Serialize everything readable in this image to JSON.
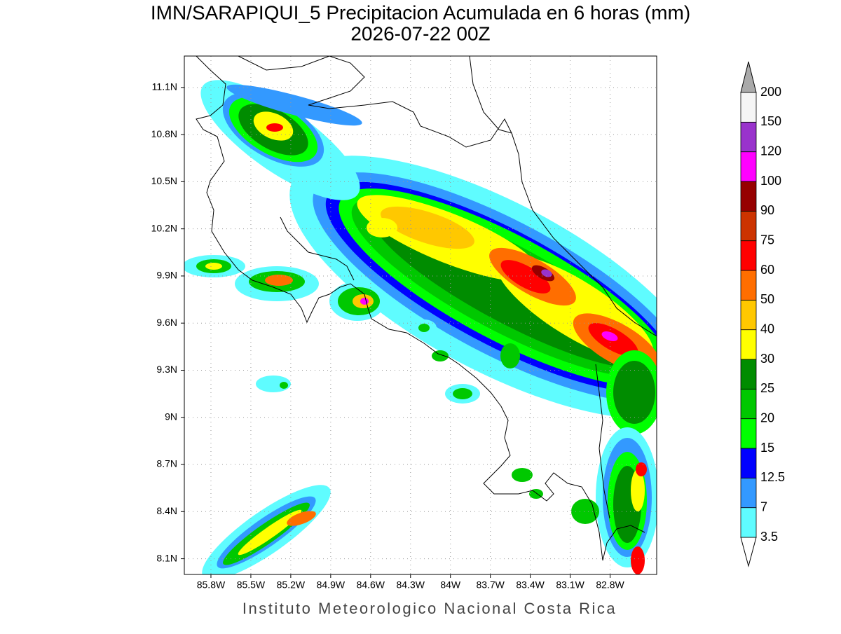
{
  "chart_data": {
    "type": "map",
    "title": "IMN/SARAPIQUI_5 Precipitacion Acumulada en 6 horas (mm)",
    "subtitle": "2026-07-22 00Z",
    "footer": "Instituto Meteorologico Nacional Costa Rica",
    "xlim": [
      -86.0,
      -82.45
    ],
    "ylim": [
      8.0,
      11.3
    ],
    "xticks": [
      {
        "value": -85.8,
        "label": "85.8W"
      },
      {
        "value": -85.5,
        "label": "85.5W"
      },
      {
        "value": -85.2,
        "label": "85.2W"
      },
      {
        "value": -84.9,
        "label": "84.9W"
      },
      {
        "value": -84.6,
        "label": "84.6W"
      },
      {
        "value": -84.3,
        "label": "84.3W"
      },
      {
        "value": -84.0,
        "label": "84W"
      },
      {
        "value": -83.7,
        "label": "83.7W"
      },
      {
        "value": -83.4,
        "label": "83.4W"
      },
      {
        "value": -83.1,
        "label": "83.1W"
      },
      {
        "value": -82.8,
        "label": "82.8W"
      }
    ],
    "yticks": [
      {
        "value": 8.1,
        "label": "8.1N"
      },
      {
        "value": 8.4,
        "label": "8.4N"
      },
      {
        "value": 8.7,
        "label": "8.7N"
      },
      {
        "value": 9.0,
        "label": "9N"
      },
      {
        "value": 9.3,
        "label": "9.3N"
      },
      {
        "value": 9.6,
        "label": "9.6N"
      },
      {
        "value": 9.9,
        "label": "9.9N"
      },
      {
        "value": 10.2,
        "label": "10.2N"
      },
      {
        "value": 10.5,
        "label": "10.5N"
      },
      {
        "value": 10.8,
        "label": "10.8N"
      },
      {
        "value": 11.1,
        "label": "11.1N"
      }
    ],
    "grid": true,
    "colorbar": {
      "levels": [
        3.5,
        7,
        12.5,
        15,
        20,
        25,
        30,
        40,
        50,
        60,
        75,
        90,
        100,
        120,
        150,
        200
      ],
      "colors": [
        "#5ffcff",
        "#3399ff",
        "#0000ff",
        "#00ff00",
        "#00c800",
        "#008c00",
        "#ffff00",
        "#ffc800",
        "#ff6e00",
        "#ff0000",
        "#cc3300",
        "#960000",
        "#ff00ff",
        "#9933cc",
        "#f5f5f5"
      ],
      "under_color": "#ffffff",
      "over_color": "#aaaaaa"
    }
  }
}
